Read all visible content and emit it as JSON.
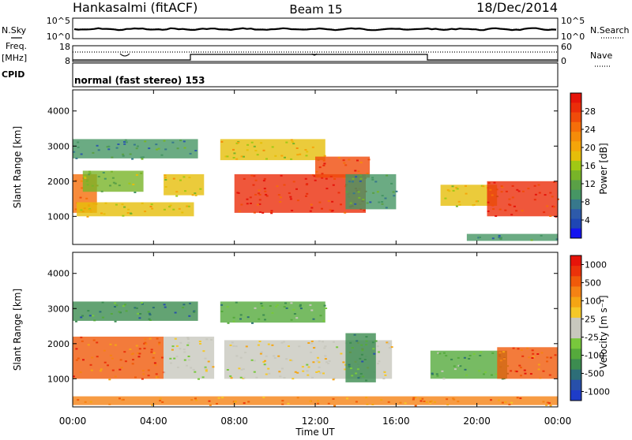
{
  "header": {
    "station": "Hankasalmi (fitACF)",
    "beam": "Beam 15",
    "date": "18/Dec/2014"
  },
  "side_labels": {
    "nsky": "N.Sky",
    "nsearch": "N.Search",
    "freq": "Freq.",
    "mhz": "[MHz]",
    "nave": "Nave",
    "cpid": "CPID",
    "cpid_value": "normal (fast stereo) 153"
  },
  "noise_panel": {
    "left_ticks": [
      "10^5",
      "10^0"
    ],
    "right_ticks": [
      "10^5",
      "10^0"
    ]
  },
  "freq_panel": {
    "left_ticks": [
      "18",
      "8"
    ],
    "right_ticks": [
      "60",
      "0"
    ]
  },
  "time_axis": {
    "label": "Time UT",
    "ticks": [
      "00:00",
      "04:00",
      "08:00",
      "12:00",
      "16:00",
      "20:00",
      "00:00"
    ]
  },
  "chart_data": [
    {
      "type": "heatmap",
      "title": "",
      "xlabel": "",
      "ylabel": "Slant Range [km]",
      "yticks": [
        "1000",
        "2000",
        "3000",
        "4000"
      ],
      "ylim": [
        200,
        4600
      ],
      "xlim_hours": [
        0,
        24
      ],
      "colorbar": {
        "label": "Power [dB]",
        "ticks": [
          "4",
          "8",
          "12",
          "16",
          "20",
          "24",
          "28"
        ],
        "range": [
          0,
          32
        ],
        "colors": [
          "#1414f0",
          "#1e46b4",
          "#2d5aaa",
          "#37788c",
          "#469664",
          "#5aa046",
          "#78b428",
          "#a0c814",
          "#e6be0a",
          "#f5a50a",
          "#f58c0a",
          "#f56e0a",
          "#f04b0a",
          "#eb2d0a",
          "#e6140a"
        ]
      },
      "echo_regions": [
        {
          "t0": 0.0,
          "t1": 6.2,
          "r0": 2650,
          "r1": 3200,
          "level": 0.3
        },
        {
          "t0": 0.0,
          "t1": 1.2,
          "r0": 1100,
          "r1": 2200,
          "level": 0.75
        },
        {
          "t0": 0.5,
          "t1": 3.5,
          "r0": 1700,
          "r1": 2300,
          "level": 0.45
        },
        {
          "t0": 0.2,
          "t1": 6.0,
          "r0": 1000,
          "r1": 1400,
          "level": 0.55
        },
        {
          "t0": 4.5,
          "t1": 6.5,
          "r0": 1600,
          "r1": 2200,
          "level": 0.6
        },
        {
          "t0": 7.3,
          "t1": 12.5,
          "r0": 2600,
          "r1": 3200,
          "level": 0.55
        },
        {
          "t0": 8.0,
          "t1": 14.5,
          "r0": 1100,
          "r1": 2200,
          "level": 0.9
        },
        {
          "t0": 12.0,
          "t1": 14.7,
          "r0": 2100,
          "r1": 2700,
          "level": 0.85
        },
        {
          "t0": 13.5,
          "t1": 16.0,
          "r0": 1200,
          "r1": 2200,
          "level": 0.25
        },
        {
          "t0": 18.2,
          "t1": 21.0,
          "r0": 1300,
          "r1": 1900,
          "level": 0.55
        },
        {
          "t0": 20.5,
          "t1": 24.0,
          "r0": 1000,
          "r1": 2000,
          "level": 0.95
        },
        {
          "t0": 19.5,
          "t1": 24.0,
          "r0": 300,
          "r1": 500,
          "level": 0.3
        }
      ]
    },
    {
      "type": "heatmap",
      "title": "",
      "xlabel": "Time UT",
      "ylabel": "Slant Range [km]",
      "yticks": [
        "1000",
        "2000",
        "3000",
        "4000"
      ],
      "ylim": [
        200,
        4600
      ],
      "xlim_hours": [
        0,
        24
      ],
      "colorbar": {
        "label": "Velocity [m s⁻¹]",
        "ticks": [
          "1000",
          "500",
          "100",
          "25",
          "-25",
          "-100",
          "-500",
          "-1000"
        ],
        "colors": [
          "#1e3cc8",
          "#2850aa",
          "#2d6e78",
          "#3c8c50",
          "#55aa3c",
          "#78c83c",
          "#c8c8be",
          "#c8c8be",
          "#f5c828",
          "#f5a514",
          "#f58214",
          "#f05a0a",
          "#eb320a",
          "#e6140a"
        ]
      },
      "echo_regions": [
        {
          "t0": 0.0,
          "t1": 6.2,
          "r0": 2650,
          "r1": 3200,
          "level": 0.25
        },
        {
          "t0": 0.0,
          "t1": 4.5,
          "r0": 1000,
          "r1": 2200,
          "level": 0.82
        },
        {
          "t0": 4.5,
          "t1": 7.0,
          "r0": 1000,
          "r1": 2200,
          "level": 0.5
        },
        {
          "t0": 7.3,
          "t1": 12.5,
          "r0": 2600,
          "r1": 3200,
          "level": 0.3
        },
        {
          "t0": 7.5,
          "t1": 15.8,
          "r0": 1000,
          "r1": 2100,
          "level": 0.5
        },
        {
          "t0": 13.5,
          "t1": 15.0,
          "r0": 900,
          "r1": 2300,
          "level": 0.25
        },
        {
          "t0": 17.7,
          "t1": 21.5,
          "r0": 1000,
          "r1": 1800,
          "level": 0.3
        },
        {
          "t0": 21.0,
          "t1": 24.0,
          "r0": 1000,
          "r1": 1900,
          "level": 0.85
        },
        {
          "t0": 0.0,
          "t1": 24.0,
          "r0": 250,
          "r1": 500,
          "level": 0.75
        }
      ]
    }
  ]
}
